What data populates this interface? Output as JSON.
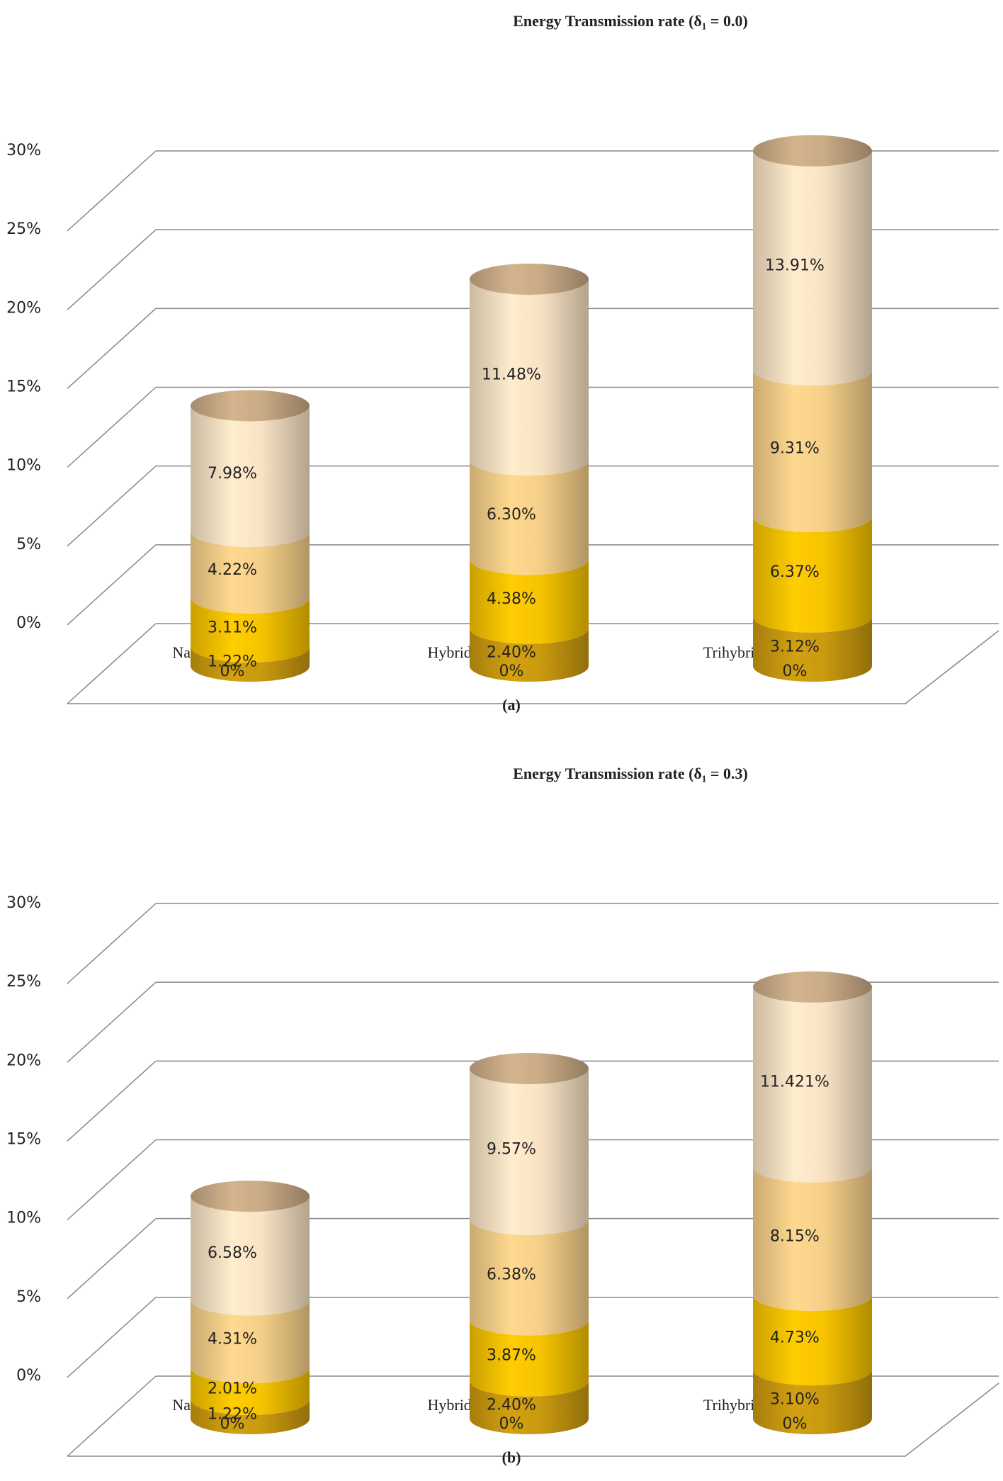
{
  "chart_data": [
    {
      "type": "bar3d",
      "title": "Energy Transmission rate (δ₁ = 0.0)",
      "caption": "(a)",
      "categories": [
        "Nanofluid",
        "Hybrid Nanofluid",
        "Trihybrid Nanofluid"
      ],
      "series": [
        {
          "color": "#b8860b",
          "values": [
            0,
            0,
            0
          ],
          "value_labels": [
            "0%",
            "0%",
            "0%"
          ]
        },
        {
          "color": "#c9990f",
          "values": [
            1.22,
            2.4,
            3.12
          ],
          "value_labels": [
            "1.22%",
            "2.40%",
            "3.12%"
          ]
        },
        {
          "color": "#f6c300",
          "values": [
            3.11,
            4.38,
            6.37
          ],
          "value_labels": [
            "3.11%",
            "4.38%",
            "6.37%"
          ]
        },
        {
          "color": "#f5cf88",
          "values": [
            4.22,
            6.3,
            9.31
          ],
          "value_labels": [
            "4.22%",
            "6.30%",
            "9.31%"
          ]
        },
        {
          "color": "#f8e2c4",
          "values": [
            7.98,
            11.48,
            13.91
          ],
          "value_labels": [
            "7.98%",
            "11.48%",
            "13.91%"
          ]
        }
      ],
      "cap_color": "#c9ab86",
      "ylim": [
        0,
        30
      ],
      "yticks": [
        {
          "value": 0,
          "label": "0%"
        },
        {
          "value": 5,
          "label": "5%"
        },
        {
          "value": 10,
          "label": "10%"
        },
        {
          "value": 15,
          "label": "15%"
        },
        {
          "value": 20,
          "label": "20%"
        },
        {
          "value": 25,
          "label": "25%"
        },
        {
          "value": 30,
          "label": "30%"
        }
      ],
      "grid": true
    },
    {
      "type": "bar3d",
      "title": "Energy Transmission rate (δ₁ = 0.3)",
      "caption": "(b)",
      "categories": [
        "Nanofluid",
        "Hybrid Nanofluid",
        "Trihybrid Nanofluid"
      ],
      "series": [
        {
          "color": "#b8860b",
          "values": [
            0,
            0,
            0
          ],
          "value_labels": [
            "0%",
            "0%",
            "0%"
          ]
        },
        {
          "color": "#c9990f",
          "values": [
            1.22,
            2.4,
            3.1
          ],
          "value_labels": [
            "1.22%",
            "2.40%",
            "3.10%"
          ]
        },
        {
          "color": "#f6c300",
          "values": [
            2.01,
            3.87,
            4.73
          ],
          "value_labels": [
            "2.01%",
            "3.87%",
            "4.73%"
          ]
        },
        {
          "color": "#f5cf88",
          "values": [
            4.31,
            6.38,
            8.15
          ],
          "value_labels": [
            "4.31%",
            "6.38%",
            "8.15%"
          ]
        },
        {
          "color": "#f8e2c4",
          "values": [
            6.58,
            9.57,
            11.421
          ],
          "value_labels": [
            "6.58%",
            "9.57%",
            "11.421%"
          ]
        }
      ],
      "cap_color": "#c9ab86",
      "ylim": [
        0,
        30
      ],
      "yticks": [
        {
          "value": 0,
          "label": "0%"
        },
        {
          "value": 5,
          "label": "5%"
        },
        {
          "value": 10,
          "label": "10%"
        },
        {
          "value": 15,
          "label": "15%"
        },
        {
          "value": 20,
          "label": "20%"
        },
        {
          "value": 25,
          "label": "25%"
        },
        {
          "value": 30,
          "label": "30%"
        }
      ],
      "grid": true
    }
  ]
}
